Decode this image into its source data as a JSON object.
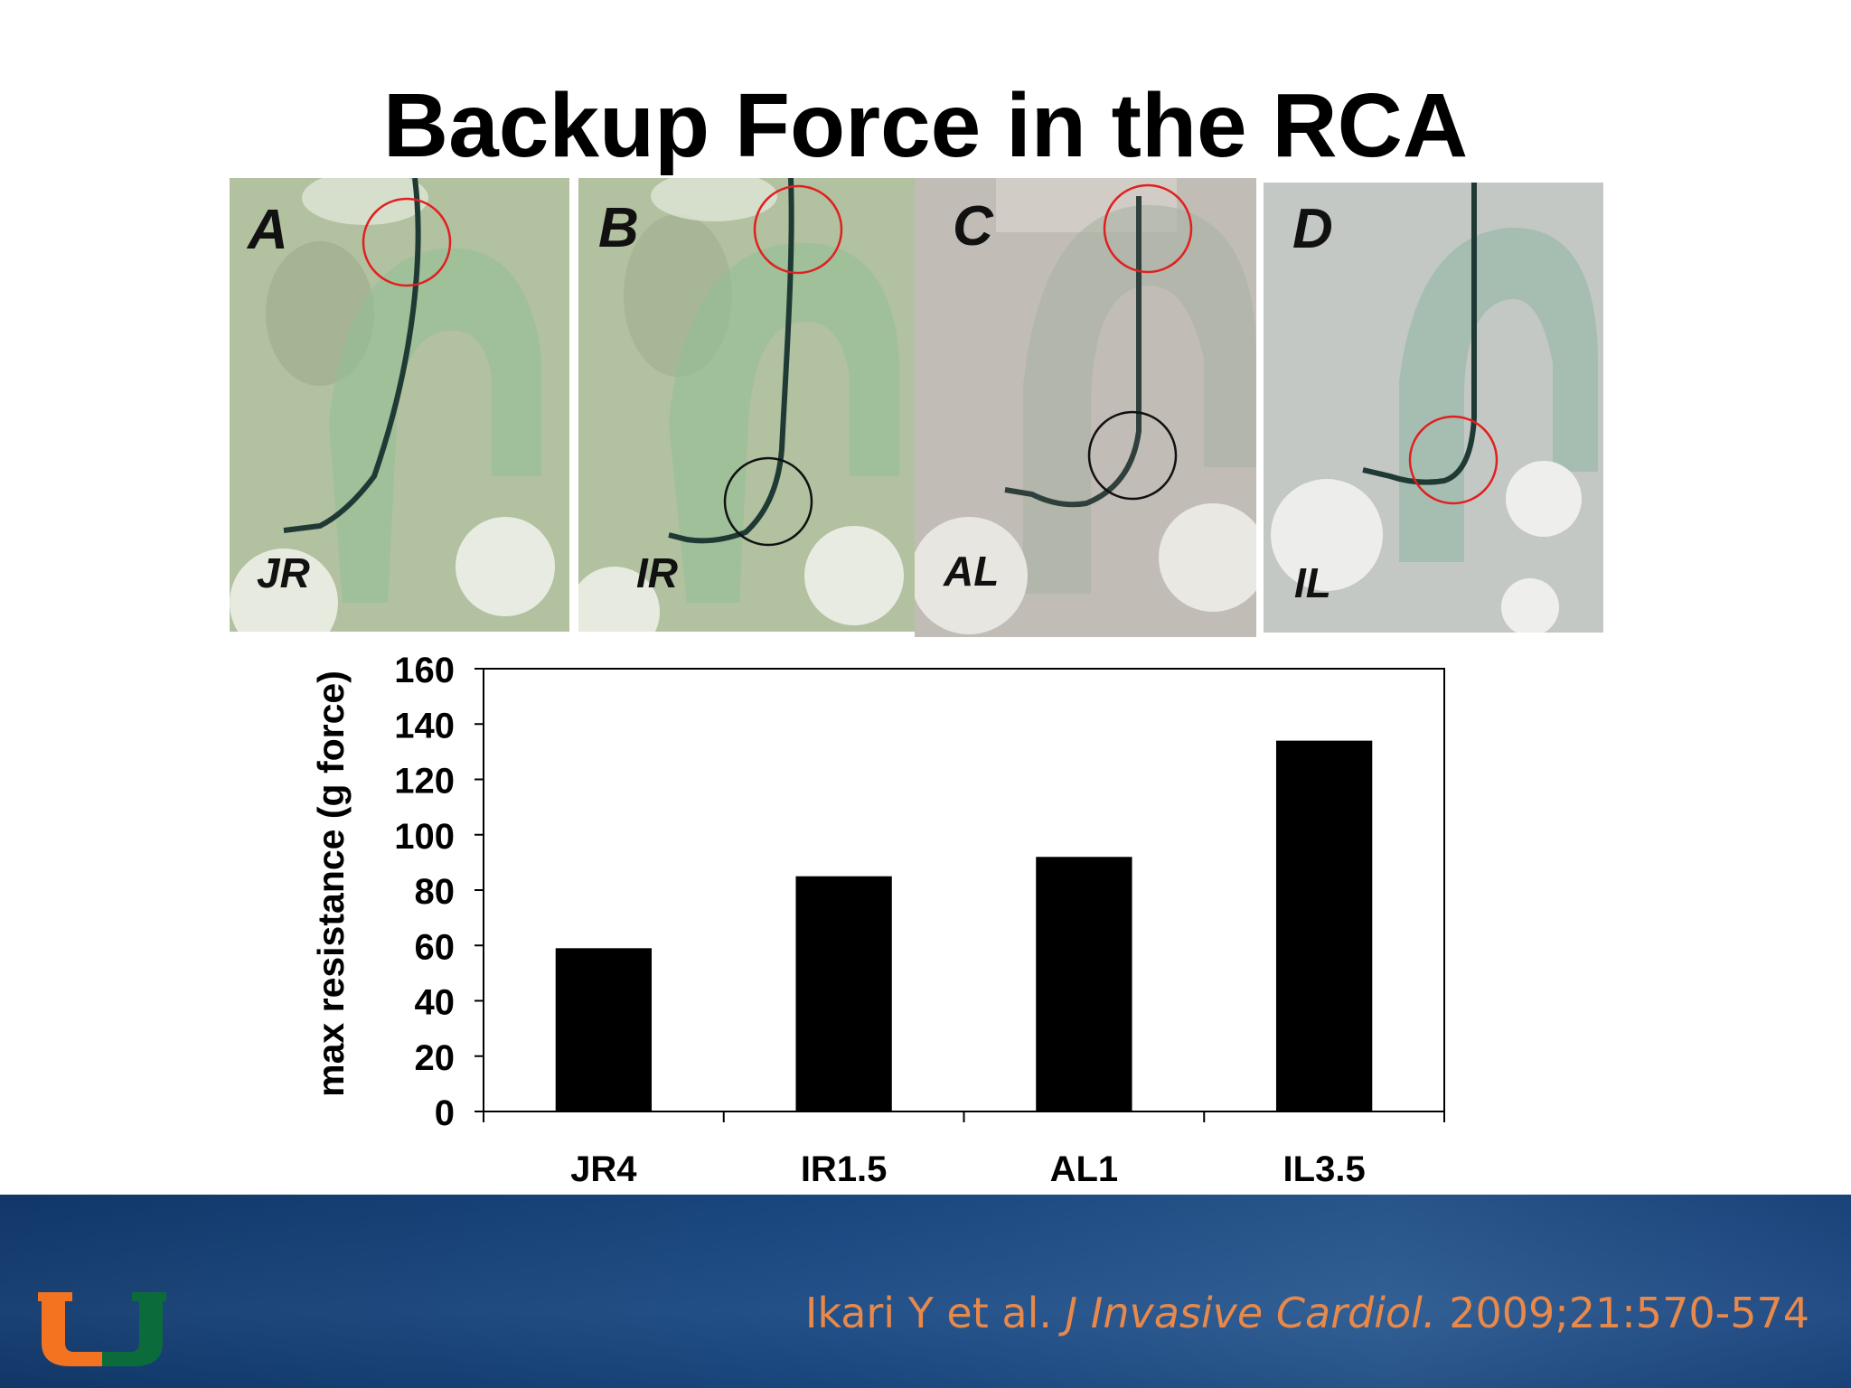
{
  "slide": {
    "title": "Backup Force in the RCA"
  },
  "panels": [
    {
      "letter": "A",
      "label": "JR",
      "highlight_colors": [
        "#e02020"
      ]
    },
    {
      "letter": "B",
      "label": "IR",
      "highlight_colors": [
        "#e02020",
        "#111111"
      ]
    },
    {
      "letter": "C",
      "label": "AL",
      "highlight_colors": [
        "#e02020",
        "#111111"
      ]
    },
    {
      "letter": "D",
      "label": "IL",
      "highlight_colors": [
        "#e02020"
      ]
    }
  ],
  "chart_data": {
    "type": "bar",
    "title": "",
    "xlabel": "",
    "ylabel": "max resistance (g force)",
    "categories": [
      "JR4",
      "IR1.5",
      "AL1",
      "IL3.5"
    ],
    "values": [
      59,
      85,
      92,
      134
    ],
    "ylim": [
      0,
      160
    ],
    "yticks": [
      0,
      20,
      40,
      60,
      80,
      100,
      120,
      140,
      160
    ],
    "bar_color": "#000000",
    "grid": false,
    "legend": "none"
  },
  "footer": {
    "citation_authors": "Ikari Y et al.",
    "citation_journal": "J Invasive Cardiol.",
    "citation_details": "2009;21:570-574",
    "logo": "university-u-logo",
    "colors": {
      "background": "#1a4a84",
      "citation": "#e8894a",
      "logo_orange": "#f47321",
      "logo_green": "#005030"
    }
  }
}
